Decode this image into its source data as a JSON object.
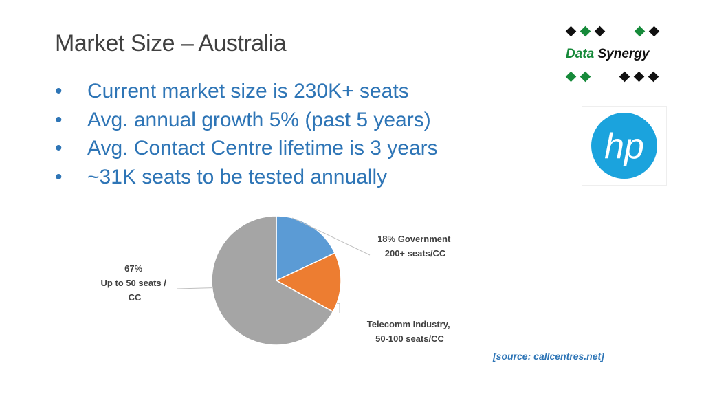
{
  "slide": {
    "title": "Market Size – Australia",
    "bullet_glyph": "•",
    "bullets": [
      "Current market size is 230K+ seats",
      "Avg. annual growth 5% (past 5 years)",
      "Avg. Contact Centre lifetime is 3 years",
      "~31K seats to be tested annually"
    ],
    "source": "[source: callcentres.net]"
  },
  "logos": {
    "data_synergy": {
      "word1": "Data",
      "word2": "Synergy",
      "colors": {
        "green": "#168a3a",
        "black": "#111111"
      }
    },
    "hp": {
      "text": "hp",
      "color": "#1BA3DD"
    }
  },
  "chart_data": {
    "type": "pie",
    "slices": [
      {
        "value": 18,
        "color": "#5B9BD5",
        "label_lines": [
          "18% Government",
          "200+ seats/CC"
        ]
      },
      {
        "value": 15,
        "color": "#ED7D31",
        "label_lines": [
          "Telecomm Industry,",
          "50-100 seats/CC"
        ]
      },
      {
        "value": 67,
        "color": "#A5A5A5",
        "label_lines": [
          "67%",
          "Up to 50 seats /",
          "CC"
        ]
      }
    ],
    "start_angle_deg": 0,
    "direction": "clockwise",
    "label_color": "#404040",
    "leader_color": "#BFBFBF"
  }
}
